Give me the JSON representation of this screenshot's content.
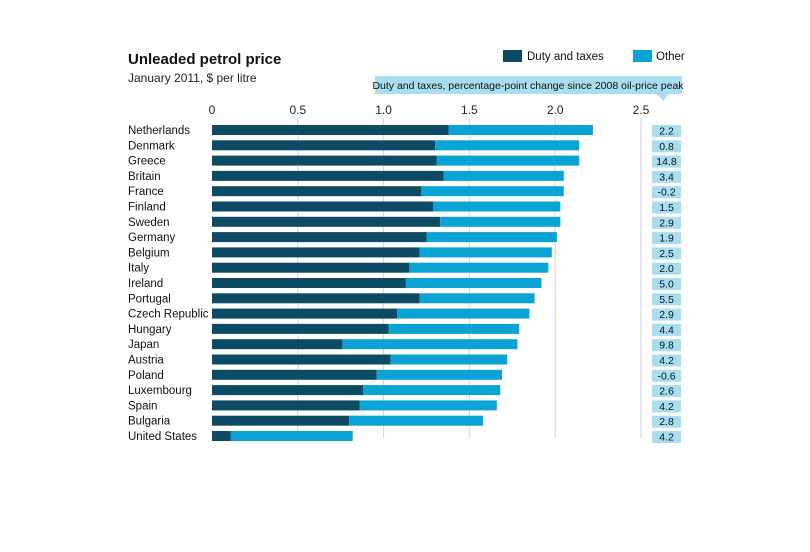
{
  "chart_data": {
    "type": "bar",
    "orientation": "horizontal",
    "stacked": true,
    "title": "Unleaded petrol price",
    "subtitle": "January 2011, $ per litre",
    "xlim": [
      0,
      2.5
    ],
    "xticks": [
      0,
      0.5,
      1.0,
      1.5,
      2.0,
      2.5
    ],
    "xtick_labels": [
      "0",
      "0.5",
      "1.0",
      "1.5",
      "2.0",
      "2.5"
    ],
    "grid": true,
    "legend_position": "top-right",
    "colors": {
      "duty": "#0d4a63",
      "other": "#0aa3d6",
      "note_bg": "#a9def2",
      "grid": "#cfd6da"
    },
    "categories": [
      "Netherlands",
      "Denmark",
      "Greece",
      "Britain",
      "France",
      "Finland",
      "Sweden",
      "Germany",
      "Belgium",
      "Italy",
      "Ireland",
      "Portugal",
      "Czech Republic",
      "Hungary",
      "Japan",
      "Austria",
      "Poland",
      "Luxembourg",
      "Spain",
      "Bulgaria",
      "United States"
    ],
    "series": [
      {
        "name": "Duty and taxes",
        "values": [
          1.38,
          1.3,
          1.31,
          1.35,
          1.22,
          1.29,
          1.33,
          1.25,
          1.21,
          1.15,
          1.13,
          1.21,
          1.08,
          1.03,
          0.76,
          1.04,
          0.96,
          0.88,
          0.86,
          0.8,
          0.11
        ]
      },
      {
        "name": "Other",
        "values": [
          0.84,
          0.84,
          0.83,
          0.7,
          0.83,
          0.74,
          0.7,
          0.76,
          0.77,
          0.81,
          0.79,
          0.67,
          0.77,
          0.76,
          1.02,
          0.68,
          0.73,
          0.8,
          0.8,
          0.78,
          0.71
        ]
      }
    ],
    "side_note": "Duty and taxes, percentage-point change since 2008 oil-price peak",
    "side_values": [
      "2.2",
      "0.8",
      "14.8",
      "3.4",
      "-0.2",
      "1.5",
      "2.9",
      "1.9",
      "2.5",
      "2.0",
      "5.0",
      "5.5",
      "2.9",
      "4.4",
      "9.8",
      "4.2",
      "-0.6",
      "2.6",
      "4.2",
      "2.8",
      "4.2"
    ]
  }
}
